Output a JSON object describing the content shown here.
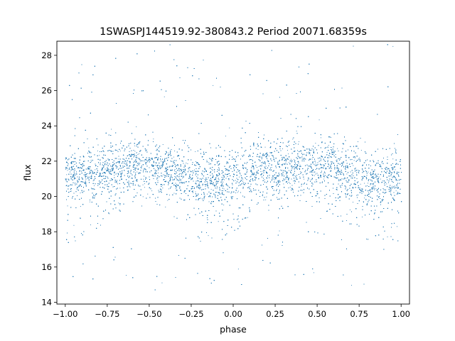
{
  "chart_data": {
    "type": "scatter",
    "title": "1SWASPJ144519.92-380843.2 Period 20071.68359s",
    "xlabel": "phase",
    "ylabel": "flux",
    "xlim": [
      -1.05,
      1.05
    ],
    "ylim": [
      13.9,
      28.8
    ],
    "x_ticks": [
      -1.0,
      -0.75,
      -0.5,
      -0.25,
      0.0,
      0.25,
      0.5,
      0.75,
      1.0
    ],
    "x_tick_labels": [
      "−1.00",
      "−0.75",
      "−0.50",
      "−0.25",
      "0.00",
      "0.25",
      "0.50",
      "0.75",
      "1.00"
    ],
    "y_ticks": [
      14,
      16,
      18,
      20,
      22,
      24,
      26,
      28
    ],
    "y_tick_labels": [
      "14",
      "16",
      "18",
      "20",
      "22",
      "24",
      "26",
      "28"
    ],
    "grid": false,
    "legend": "none",
    "marker_color": "#1f77b4",
    "series": [
      {
        "values_summary": "dense band of points across phase -1.00 to 1.00",
        "phase_range": [
          -1.0,
          1.0
        ],
        "flux_core_range": [
          19.5,
          23.3
        ],
        "flux_full_range": [
          14.7,
          28.7
        ],
        "profile": [
          {
            "phase": -1.0,
            "flux_center": 21.3,
            "flux_lower_extent": 17.5
          },
          {
            "phase": -0.85,
            "flux_center": 21.4,
            "flux_lower_extent": 18.0
          },
          {
            "phase": -0.6,
            "flux_center": 21.9,
            "flux_lower_extent": 19.5
          },
          {
            "phase": -0.4,
            "flux_center": 21.7,
            "flux_lower_extent": 19.0
          },
          {
            "phase": -0.2,
            "flux_center": 21.0,
            "flux_lower_extent": 17.5
          },
          {
            "phase": -0.05,
            "flux_center": 21.0,
            "flux_lower_extent": 17.5
          },
          {
            "phase": 0.15,
            "flux_center": 21.6,
            "flux_lower_extent": 19.0
          },
          {
            "phase": 0.4,
            "flux_center": 21.9,
            "flux_lower_extent": 19.5
          },
          {
            "phase": 0.6,
            "flux_center": 21.7,
            "flux_lower_extent": 19.0
          },
          {
            "phase": 0.8,
            "flux_center": 21.0,
            "flux_lower_extent": 17.5
          },
          {
            "phase": 0.95,
            "flux_center": 21.0,
            "flux_lower_extent": 17.5
          },
          {
            "phase": 1.0,
            "flux_center": 21.3,
            "flux_lower_extent": 17.5
          }
        ]
      }
    ]
  }
}
